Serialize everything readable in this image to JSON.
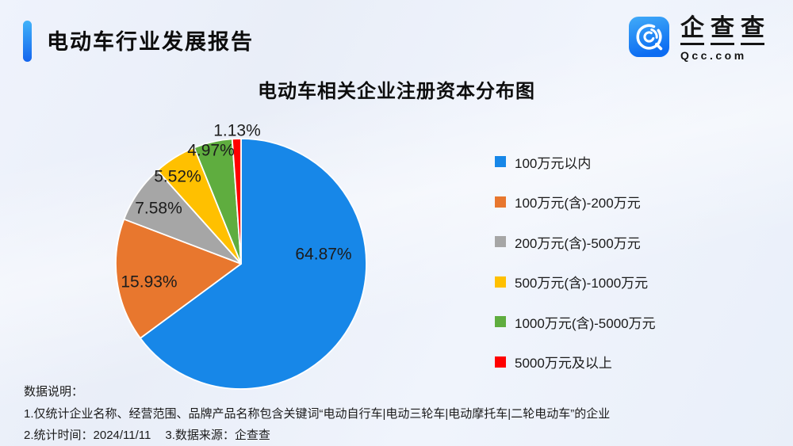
{
  "header": {
    "report_title": "电动车行业发展报告",
    "logo": {
      "brand_cn": "企查查",
      "brand_en": "Qcc.com"
    },
    "accent_color": "#1365ee"
  },
  "chart_data": {
    "type": "pie",
    "title": "电动车相关企业注册资本分布图",
    "categories": [
      "100万元以内",
      "100万元(含)-200万元",
      "200万元(含)-500万元",
      "500万元(含)-1000万元",
      "1000万元(含)-5000万元",
      "5000万元及以上"
    ],
    "values": [
      64.87,
      15.93,
      7.58,
      5.52,
      4.97,
      1.13
    ],
    "labels": [
      "64.87%",
      "15.93%",
      "7.58%",
      "5.52%",
      "4.97%",
      "1.13%"
    ],
    "colors": [
      "#1787e8",
      "#e8772e",
      "#a6a6a6",
      "#ffc000",
      "#5fad3f",
      "#ff0000"
    ],
    "unit": "%",
    "legend_position": "right",
    "start_angle_deg": 0,
    "direction": "clockwise",
    "pie_center": [
      304,
      333
    ],
    "pie_radius": 158,
    "label_positions": [
      [
        408,
        322
      ],
      [
        188,
        357
      ],
      [
        200,
        264
      ],
      [
        224,
        224
      ],
      [
        266,
        191
      ],
      [
        299,
        166
      ]
    ]
  },
  "footer": {
    "heading": "数据说明：",
    "note1": "1.仅统计企业名称、经营范围、品牌产品名称包含关键词“电动自行车|电动三轮车|电动摩托车|二轮电动车”的企业",
    "note2": "2.统计时间：2024/11/11",
    "note3": "3.数据来源：企查查"
  }
}
